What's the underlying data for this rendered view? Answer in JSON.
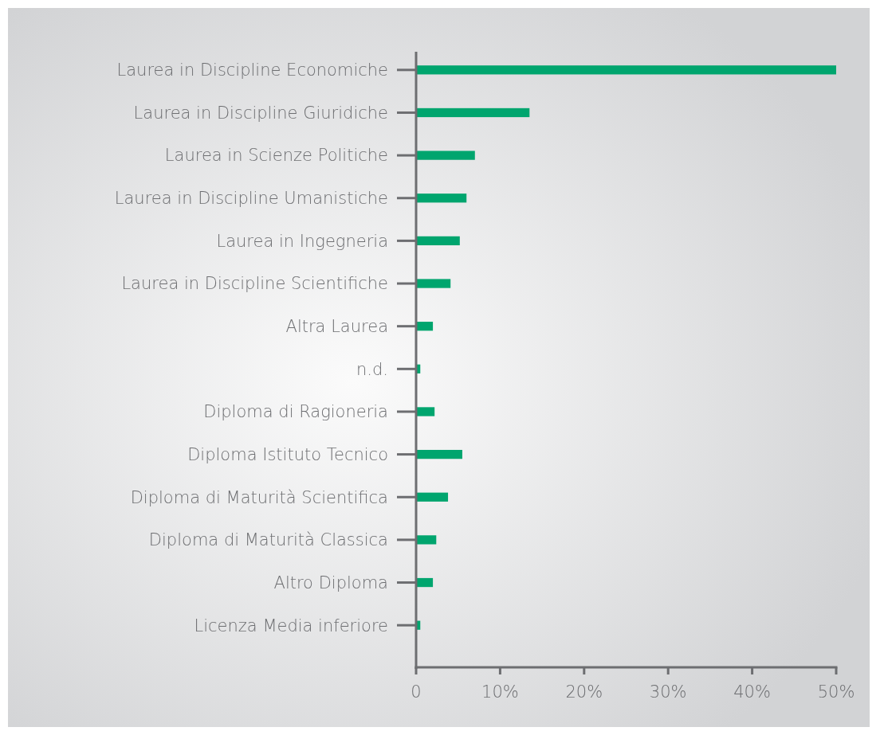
{
  "chart_data": {
    "type": "bar",
    "orientation": "horizontal",
    "categories": [
      "Laurea in Discipline Economiche",
      "Laurea in Discipline Giuridiche",
      "Laurea in Scienze Politiche",
      "Laurea in Discipline Umanistiche",
      "Laurea in Ingegneria",
      "Laurea in Discipline Scientifiche",
      "Altra Laurea",
      "n.d.",
      "Diploma di Ragioneria",
      "Diploma Istituto Tecnico",
      "Diploma di Maturità Scientifica",
      "Diploma di Maturità Classica",
      "Altro Diploma",
      "Licenza Media inferiore"
    ],
    "values": [
      50,
      13.5,
      7,
      6,
      5.2,
      4.1,
      2,
      0.5,
      2.2,
      5.5,
      3.8,
      2.4,
      2,
      0.5
    ],
    "color": "#00a56e",
    "xlim": [
      0,
      50
    ],
    "xticks": [
      0,
      {
        "value": 10,
        "label": "10%"
      },
      {
        "value": 20,
        "label": "20%"
      },
      {
        "value": 30,
        "label": "30%"
      },
      {
        "value": 40,
        "label": "40%"
      },
      {
        "value": 50,
        "label": "50%"
      }
    ],
    "grid": false
  }
}
